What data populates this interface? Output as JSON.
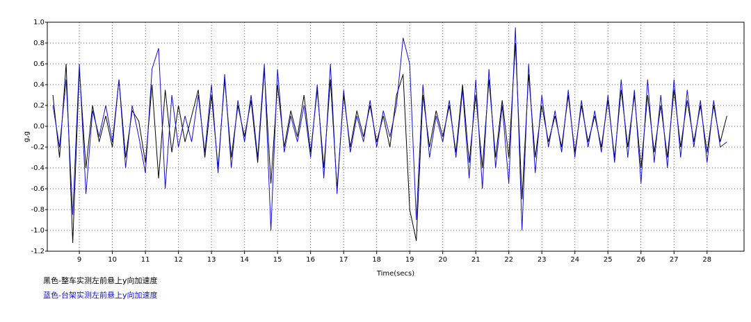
{
  "chart_data": {
    "type": "line",
    "x_label": "Time(secs)",
    "y_label": "g,g",
    "xlim": [
      8.03,
      29.12
    ],
    "ylim": [
      -1.2,
      1.0
    ],
    "xticks": [
      9,
      10,
      11,
      12,
      13,
      14,
      15,
      16,
      17,
      18,
      19,
      20,
      21,
      22,
      23,
      24,
      25,
      26,
      27,
      28
    ],
    "yticks": [
      {
        "value": 1.0,
        "label": "1.0"
      },
      0.8,
      0.6,
      0.4,
      0.2,
      {
        "value": 0.0,
        "label": "0.0"
      },
      -0.2,
      -0.4,
      -0.6,
      -0.8,
      {
        "value": -1.0,
        "label": "-1.0"
      },
      -1.2
    ],
    "grid": true,
    "x": [
      8.2,
      8.4,
      8.6,
      8.8,
      9.0,
      9.2,
      9.4,
      9.6,
      9.8,
      10.0,
      10.2,
      10.4,
      10.6,
      10.8,
      11.0,
      11.2,
      11.4,
      11.6,
      11.8,
      12.0,
      12.2,
      12.4,
      12.6,
      12.8,
      13.0,
      13.2,
      13.4,
      13.6,
      13.8,
      14.0,
      14.2,
      14.4,
      14.6,
      14.8,
      15.0,
      15.2,
      15.4,
      15.6,
      15.8,
      16.0,
      16.2,
      16.4,
      16.6,
      16.8,
      17.0,
      17.2,
      17.4,
      17.6,
      17.8,
      18.0,
      18.2,
      18.4,
      18.6,
      18.8,
      19.0,
      19.2,
      19.4,
      19.6,
      19.8,
      20.0,
      20.2,
      20.4,
      20.6,
      20.8,
      21.0,
      21.2,
      21.4,
      21.6,
      21.8,
      22.0,
      22.2,
      22.4,
      22.6,
      22.8,
      23.0,
      23.2,
      23.4,
      23.6,
      23.8,
      24.0,
      24.2,
      24.4,
      24.6,
      24.8,
      25.0,
      25.2,
      25.4,
      25.6,
      25.8,
      26.0,
      26.2,
      26.4,
      26.6,
      26.8,
      27.0,
      27.2,
      27.4,
      27.6,
      27.8,
      28.0,
      28.2,
      28.4,
      28.6
    ],
    "series": [
      {
        "name": "黑色-整车实测左前悬上y向加速度",
        "color": "#000000",
        "values": [
          0.3,
          -0.3,
          0.6,
          -1.12,
          0.55,
          -0.4,
          0.2,
          -0.15,
          0.1,
          -0.2,
          0.45,
          -0.3,
          0.15,
          0.05,
          -0.35,
          0.4,
          -0.5,
          0.35,
          -0.25,
          0.2,
          -0.15,
          0.1,
          0.35,
          -0.3,
          0.3,
          -0.4,
          0.45,
          -0.3,
          0.2,
          -0.1,
          0.25,
          -0.35,
          0.55,
          -0.55,
          0.4,
          -0.2,
          0.15,
          -0.1,
          0.3,
          -0.25,
          0.35,
          -0.4,
          0.45,
          -0.6,
          0.3,
          -0.2,
          0.15,
          -0.1,
          0.2,
          -0.15,
          0.1,
          -0.2,
          0.3,
          0.5,
          -0.8,
          -1.1,
          0.3,
          -0.2,
          0.15,
          -0.1,
          0.2,
          -0.25,
          0.4,
          -0.35,
          0.3,
          -0.4,
          0.45,
          -0.3,
          0.25,
          -0.3,
          0.8,
          -0.7,
          0.5,
          -0.3,
          0.2,
          -0.15,
          0.1,
          -0.2,
          0.3,
          -0.25,
          0.2,
          -0.15,
          0.1,
          -0.2,
          0.25,
          -0.3,
          0.35,
          -0.2,
          0.3,
          -0.4,
          0.3,
          -0.25,
          0.2,
          -0.3,
          0.35,
          -0.2,
          0.25,
          -0.15,
          0.2,
          -0.25,
          0.2,
          -0.15,
          0.1
        ]
      },
      {
        "name": "蓝色-台架实测左前悬上y向加速度",
        "color": "#1010d0",
        "values": [
          0.2,
          -0.2,
          0.45,
          -0.85,
          0.6,
          -0.65,
          0.15,
          -0.1,
          0.2,
          -0.15,
          0.45,
          -0.4,
          0.2,
          -0.1,
          -0.45,
          0.55,
          0.75,
          -0.6,
          0.3,
          -0.2,
          0.1,
          -0.15,
          0.3,
          -0.25,
          0.4,
          -0.45,
          0.5,
          -0.4,
          0.25,
          -0.15,
          0.3,
          -0.3,
          0.6,
          -1.0,
          0.55,
          -0.25,
          0.1,
          -0.15,
          0.2,
          -0.3,
          0.4,
          -0.5,
          0.6,
          -0.65,
          0.35,
          -0.25,
          0.1,
          -0.15,
          0.25,
          -0.2,
          0.15,
          -0.1,
          0.2,
          0.85,
          0.6,
          -0.9,
          0.4,
          -0.3,
          0.1,
          -0.15,
          0.25,
          -0.3,
          0.35,
          -0.5,
          0.45,
          -0.6,
          0.55,
          -0.4,
          0.2,
          -0.55,
          0.95,
          -1.0,
          0.6,
          -0.45,
          0.3,
          -0.2,
          0.15,
          -0.25,
          0.35,
          -0.3,
          0.25,
          -0.2,
          0.15,
          -0.25,
          0.3,
          -0.35,
          0.45,
          -0.3,
          0.35,
          -0.55,
          0.45,
          -0.35,
          0.3,
          -0.4,
          0.45,
          -0.3,
          0.35,
          -0.2,
          0.25,
          -0.35,
          0.25,
          -0.2,
          -0.15
        ]
      }
    ]
  }
}
